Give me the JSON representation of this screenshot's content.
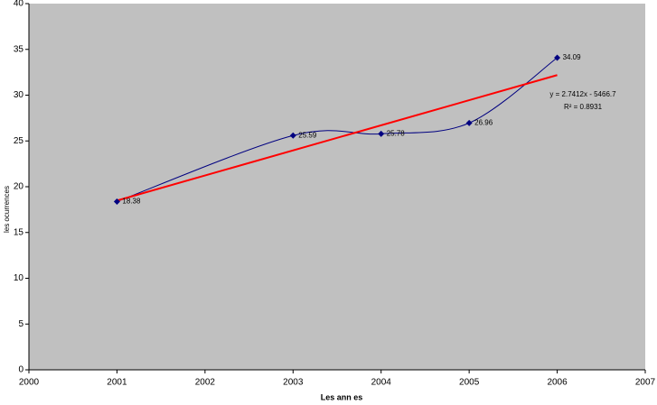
{
  "chart_data": {
    "type": "scatter",
    "x_label": "Les ann es",
    "y_label": "les ocurrences",
    "series": [
      {
        "name": "les ocurrences",
        "color": "#000080",
        "x": [
          2001,
          2003,
          2004,
          2005,
          2006
        ],
        "values": [
          18.38,
          25.59,
          25.78,
          26.96,
          34.09
        ]
      }
    ],
    "trendline": {
      "color": "#ff0000",
      "equation": "y = 2.7412x - 5466.7",
      "r_squared": "R² = 0.8931"
    },
    "xlim": [
      2000,
      2007
    ],
    "xticks": [
      2000,
      2001,
      2002,
      2003,
      2004,
      2005,
      2006,
      2007
    ],
    "ylim": [
      0,
      40
    ],
    "yticks": [
      0,
      5,
      10,
      15,
      20,
      25,
      30,
      35,
      40
    ],
    "plot_background": "#c0c0c0"
  }
}
